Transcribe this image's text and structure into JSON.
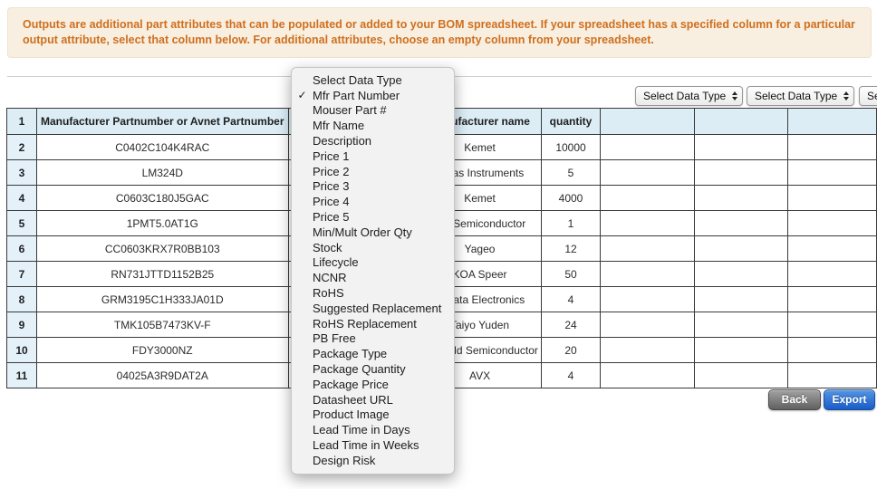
{
  "banner": {
    "message": "Outputs are additional part attributes that can be populated or added to your BOM spreadsheet. If your spreadsheet has a specified column for a particular output attribute, select that column below. For additional attributes, choose an empty column from your spreadsheet."
  },
  "column_selectors": [
    {
      "value": "Select Data Type"
    },
    {
      "value": "Select Data Type"
    },
    {
      "value": "Select Data Type"
    }
  ],
  "dropdown": {
    "items": [
      {
        "label": "Select Data Type",
        "checked": false
      },
      {
        "label": "Mfr Part Number",
        "checked": true
      },
      {
        "label": "Mouser Part #",
        "checked": false
      },
      {
        "label": "Mfr Name",
        "checked": false
      },
      {
        "label": "Description",
        "checked": false
      },
      {
        "label": "Price 1",
        "checked": false
      },
      {
        "label": "Price 2",
        "checked": false
      },
      {
        "label": "Price 3",
        "checked": false
      },
      {
        "label": "Price 4",
        "checked": false
      },
      {
        "label": "Price 5",
        "checked": false
      },
      {
        "label": "Min/Mult Order Qty",
        "checked": false
      },
      {
        "label": "Stock",
        "checked": false
      },
      {
        "label": "Lifecycle",
        "checked": false
      },
      {
        "label": "NCNR",
        "checked": false
      },
      {
        "label": "RoHS",
        "checked": false
      },
      {
        "label": "Suggested Replacement",
        "checked": false
      },
      {
        "label": "RoHS Replacement",
        "checked": false
      },
      {
        "label": "PB Free",
        "checked": false
      },
      {
        "label": "Package Type",
        "checked": false
      },
      {
        "label": "Package Quantity",
        "checked": false
      },
      {
        "label": "Package Price",
        "checked": false
      },
      {
        "label": "Datasheet URL",
        "checked": false
      },
      {
        "label": "Product Image",
        "checked": false
      },
      {
        "label": "Lead Time in Days",
        "checked": false
      },
      {
        "label": "Lead Time in Weeks",
        "checked": false
      },
      {
        "label": "Design Risk",
        "checked": false
      }
    ]
  },
  "table": {
    "header_row_number": "1",
    "headers": [
      "Manufacturer Partnumber or Avnet Partnumber",
      "",
      "Manufacturer name",
      "quantity",
      "",
      "",
      ""
    ],
    "rows": [
      {
        "num": "2",
        "part": "C0402C104K4RAC",
        "mfr": "Kemet",
        "qty": "10000"
      },
      {
        "num": "3",
        "part": "LM324D",
        "mfr": "Texas Instruments",
        "qty": "5"
      },
      {
        "num": "4",
        "part": "C0603C180J5GAC",
        "mfr": "Kemet",
        "qty": "4000"
      },
      {
        "num": "5",
        "part": "1PMT5.0AT1G",
        "mfr": "ON Semiconductor",
        "qty": "1"
      },
      {
        "num": "6",
        "part": "CC0603KRX7R0BB103",
        "mfr": "Yageo",
        "qty": "12"
      },
      {
        "num": "7",
        "part": "RN731JTTD1152B25",
        "mfr": "KOA Speer",
        "qty": "50"
      },
      {
        "num": "8",
        "part": "GRM3195C1H333JA01D",
        "mfr": "Murata Electronics",
        "qty": "4"
      },
      {
        "num": "9",
        "part": "TMK105B7473KV-F",
        "mfr": "Taiyo Yuden",
        "qty": "24"
      },
      {
        "num": "10",
        "part": "FDY3000NZ",
        "mfr": "Fairchild Semiconductor",
        "qty": "20"
      },
      {
        "num": "11",
        "part": "04025A3R9DAT2A",
        "mfr": "AVX",
        "qty": "4"
      }
    ]
  },
  "buttons": {
    "back": "Back",
    "export": "Export"
  },
  "icons": {
    "check": "✓",
    "stepper": "up-down-arrows"
  },
  "colors": {
    "banner_text": "#cf6f1f",
    "banner_bg": "#f8efe0",
    "header_bg": "#dcedf6",
    "export_blue": "#1a5cc8",
    "back_gray": "#707070"
  }
}
